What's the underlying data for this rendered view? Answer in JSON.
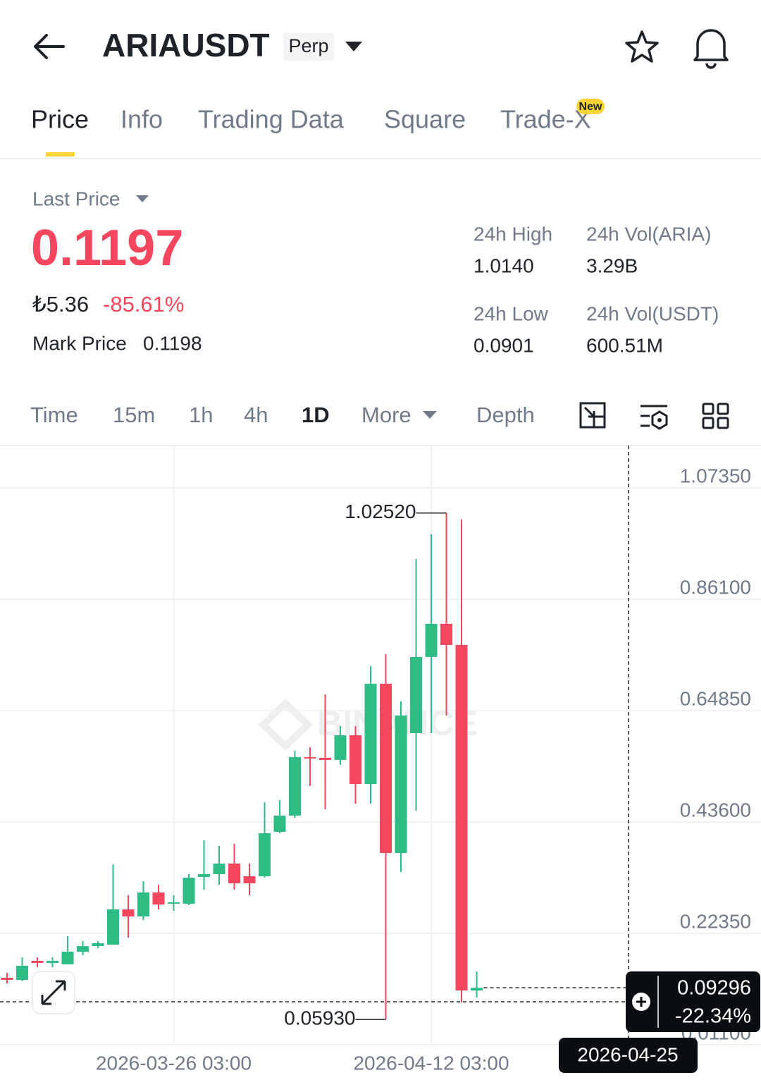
{
  "header": {
    "title": "ARIAUSDT",
    "badge": "Perp"
  },
  "tabs": {
    "items": [
      "Price",
      "Info",
      "Trading Data",
      "Square",
      "Trade-X"
    ],
    "active": 0,
    "new_badge": "New"
  },
  "price": {
    "label": "Last Price",
    "last": "0.1197",
    "fiat": "₺5.36",
    "change": "-85.61%",
    "mark_label": "Mark Price",
    "mark": "0.1198"
  },
  "stats": [
    {
      "label": "24h High",
      "value": "1.0140"
    },
    {
      "label": "24h Vol(ARIA)",
      "value": "3.29B"
    },
    {
      "label": "24h Low",
      "value": "0.0901"
    },
    {
      "label": "24h Vol(USDT)",
      "value": "600.51M"
    }
  ],
  "intervals": {
    "items": [
      "Time",
      "15m",
      "1h",
      "4h",
      "1D",
      "More",
      "Depth"
    ],
    "active": 4
  },
  "chart_data": {
    "type": "candlestick",
    "watermark": "BINANCE",
    "categories": [
      null,
      null,
      null,
      null,
      null,
      null,
      null,
      null,
      null,
      null,
      null,
      "2026-03-26 03:00",
      null,
      null,
      null,
      null,
      null,
      null,
      null,
      null,
      null,
      null,
      null,
      null,
      null,
      null,
      null,
      null,
      "2026-04-12 03:00",
      null,
      null,
      null
    ],
    "open": [
      0.1387,
      0.1347,
      0.171,
      0.167,
      0.1643,
      0.1885,
      0.1992,
      0.2019,
      0.2692,
      0.2557,
      0.3015,
      0.2799,
      0.2799,
      0.3311,
      0.3364,
      0.3566,
      0.3324,
      0.3324,
      0.4171,
      0.4481,
      0.5597,
      0.5584,
      0.5543,
      0.6014,
      0.5086,
      0.6996,
      0.3768,
      0.6054,
      0.7507,
      0.8139,
      0.7736,
      0.1145
    ],
    "high": [
      0.1481,
      0.1777,
      0.1777,
      0.1777,
      0.2181,
      0.2087,
      0.2087,
      0.3553,
      0.2961,
      0.323,
      0.3163,
      0.2961,
      0.3364,
      0.401,
      0.3902,
      0.3943,
      0.3566,
      0.4736,
      0.4777,
      0.5718,
      0.5785,
      0.6794,
      0.6189,
      0.6189,
      0.7332,
      0.7561,
      0.666,
      0.9377,
      0.9847,
      1.0252,
      1.013,
      0.1508
    ],
    "low": [
      0.128,
      0.132,
      0.1589,
      0.1589,
      0.1643,
      0.1818,
      0.1952,
      0.2019,
      0.2154,
      0.249,
      0.2692,
      0.2665,
      0.2773,
      0.3068,
      0.3163,
      0.3068,
      0.2961,
      0.3297,
      0.4144,
      0.444,
      0.5046,
      0.4602,
      0.5449,
      0.4709,
      0.4709,
      0.0593,
      0.3405,
      0.4575,
      0.6054,
      0.6391,
      0.0916,
      0.1011
    ],
    "close": [
      0.1347,
      0.1616,
      0.167,
      0.171,
      0.1885,
      0.1992,
      0.2046,
      0.2692,
      0.2557,
      0.3015,
      0.2786,
      0.2826,
      0.3297,
      0.3364,
      0.3566,
      0.319,
      0.319,
      0.4144,
      0.4481,
      0.5597,
      0.557,
      0.5543,
      0.6014,
      0.5086,
      0.6996,
      0.3768,
      0.6391,
      0.7507,
      0.8139,
      0.7736,
      0.1145,
      0.1197
    ],
    "up_color": "#2EBD85",
    "down_color": "#F6465D",
    "ylim": [
      0.011,
      1.154
    ],
    "yticks": [
      {
        "value": 1.0735,
        "label": "1.07350"
      },
      {
        "value": 0.861,
        "label": "0.86100"
      },
      {
        "value": 0.6485,
        "label": "0.64850"
      },
      {
        "value": 0.436,
        "label": "0.43600"
      },
      {
        "value": 0.2235,
        "label": "0.22350"
      },
      {
        "value": 0.011,
        "label": "0.01100"
      }
    ],
    "grid": true,
    "high_label": {
      "value": 1.0252,
      "label": "1.02520"
    },
    "low_label": {
      "value": 0.0593,
      "label": "0.05930"
    },
    "crosshair": {
      "price": 0.09296,
      "change": "-22.34%",
      "date": "2026-04-25"
    }
  }
}
